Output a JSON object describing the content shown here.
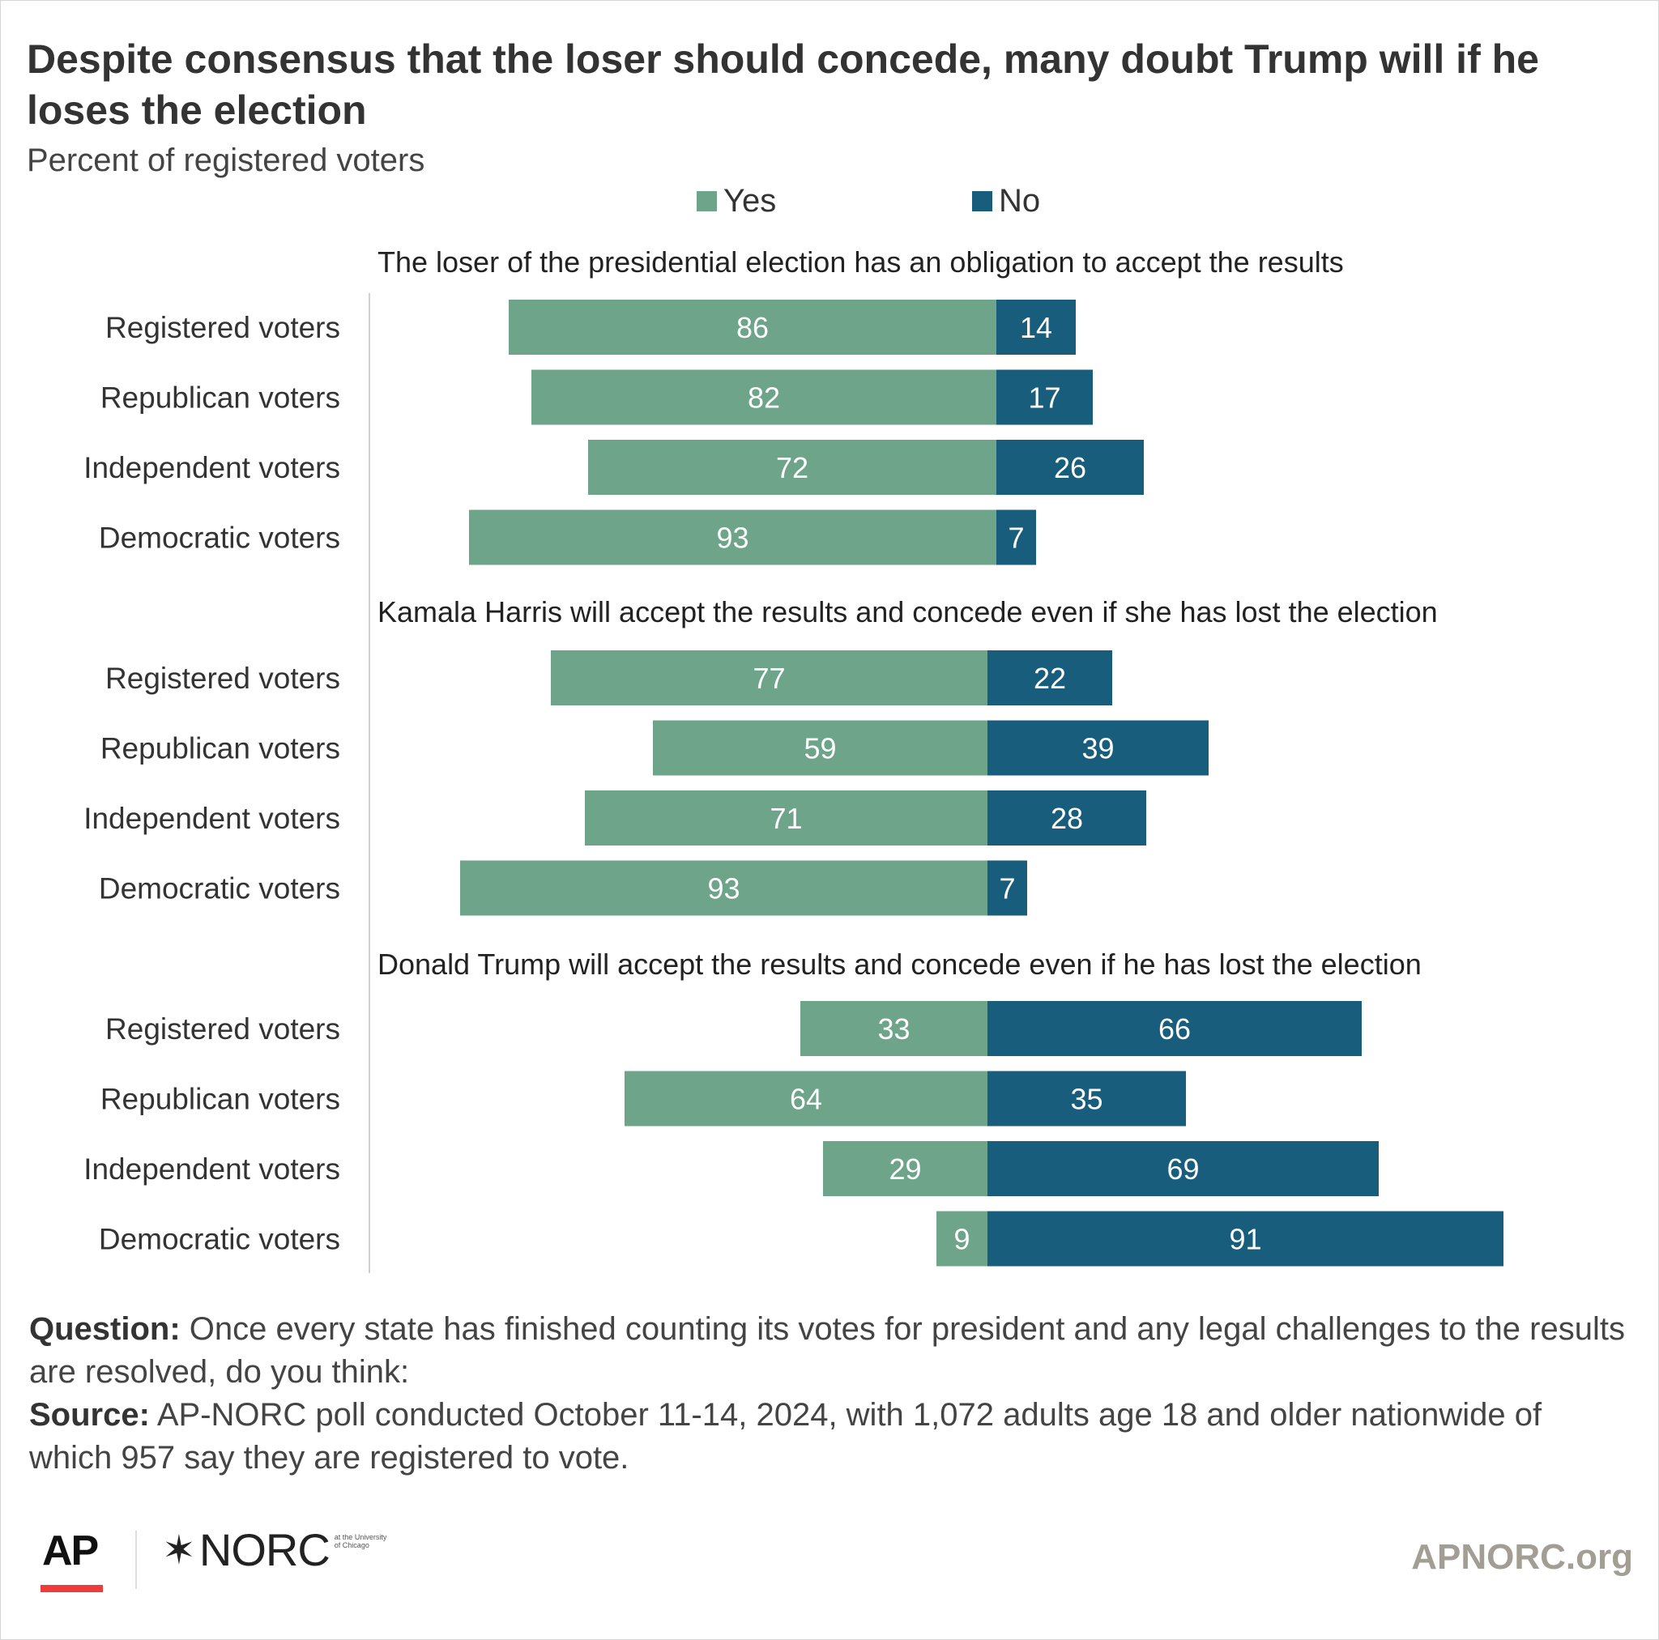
{
  "title": "Despite consensus that the loser should concede, many doubt Trump will if he loses the election",
  "subtitle": "Percent of registered voters",
  "legend": {
    "yes": {
      "label": "Yes",
      "color": "#6ea58a"
    },
    "no": {
      "label": "No",
      "color": "#185e7c"
    }
  },
  "chart_data": {
    "type": "bar",
    "orientation": "horizontal-diverging",
    "series_names": [
      "Yes",
      "No"
    ],
    "panels": [
      {
        "title": "The loser of the presidential election has an obligation to accept the results",
        "categories": [
          "Registered voters",
          "Republican voters",
          "Independent voters",
          "Democratic voters"
        ],
        "series": [
          {
            "name": "Yes",
            "values": [
              86,
              82,
              72,
              93
            ]
          },
          {
            "name": "No",
            "values": [
              14,
              17,
              26,
              7
            ]
          }
        ]
      },
      {
        "title": "Kamala Harris will accept the results and concede even if she has lost the election",
        "categories": [
          "Registered voters",
          "Republican voters",
          "Independent voters",
          "Democratic voters"
        ],
        "series": [
          {
            "name": "Yes",
            "values": [
              77,
              59,
              71,
              93
            ]
          },
          {
            "name": "No",
            "values": [
              22,
              39,
              28,
              7
            ]
          }
        ]
      },
      {
        "title": "Donald Trump will accept the results and concede even if he has lost the election",
        "categories": [
          "Registered voters",
          "Republican voters",
          "Independent voters",
          "Democratic voters"
        ],
        "series": [
          {
            "name": "Yes",
            "values": [
              33,
              64,
              29,
              9
            ]
          },
          {
            "name": "No",
            "values": [
              66,
              35,
              69,
              91
            ]
          }
        ]
      }
    ]
  },
  "footer": {
    "question_label": "Question:",
    "question_text": "Once every state has finished counting its votes for president and any legal challenges to the results are resolved, do you think:",
    "source_label": "Source:",
    "source_text": "AP-NORC poll conducted October 11-14, 2024, with 1,072 adults age 18 and older nationwide of which 957 say they are registered to vote."
  },
  "logos": {
    "ap": "AP",
    "norc": "NORC",
    "norc_small": "at the University of Chicago",
    "site": "APNORC.org"
  }
}
